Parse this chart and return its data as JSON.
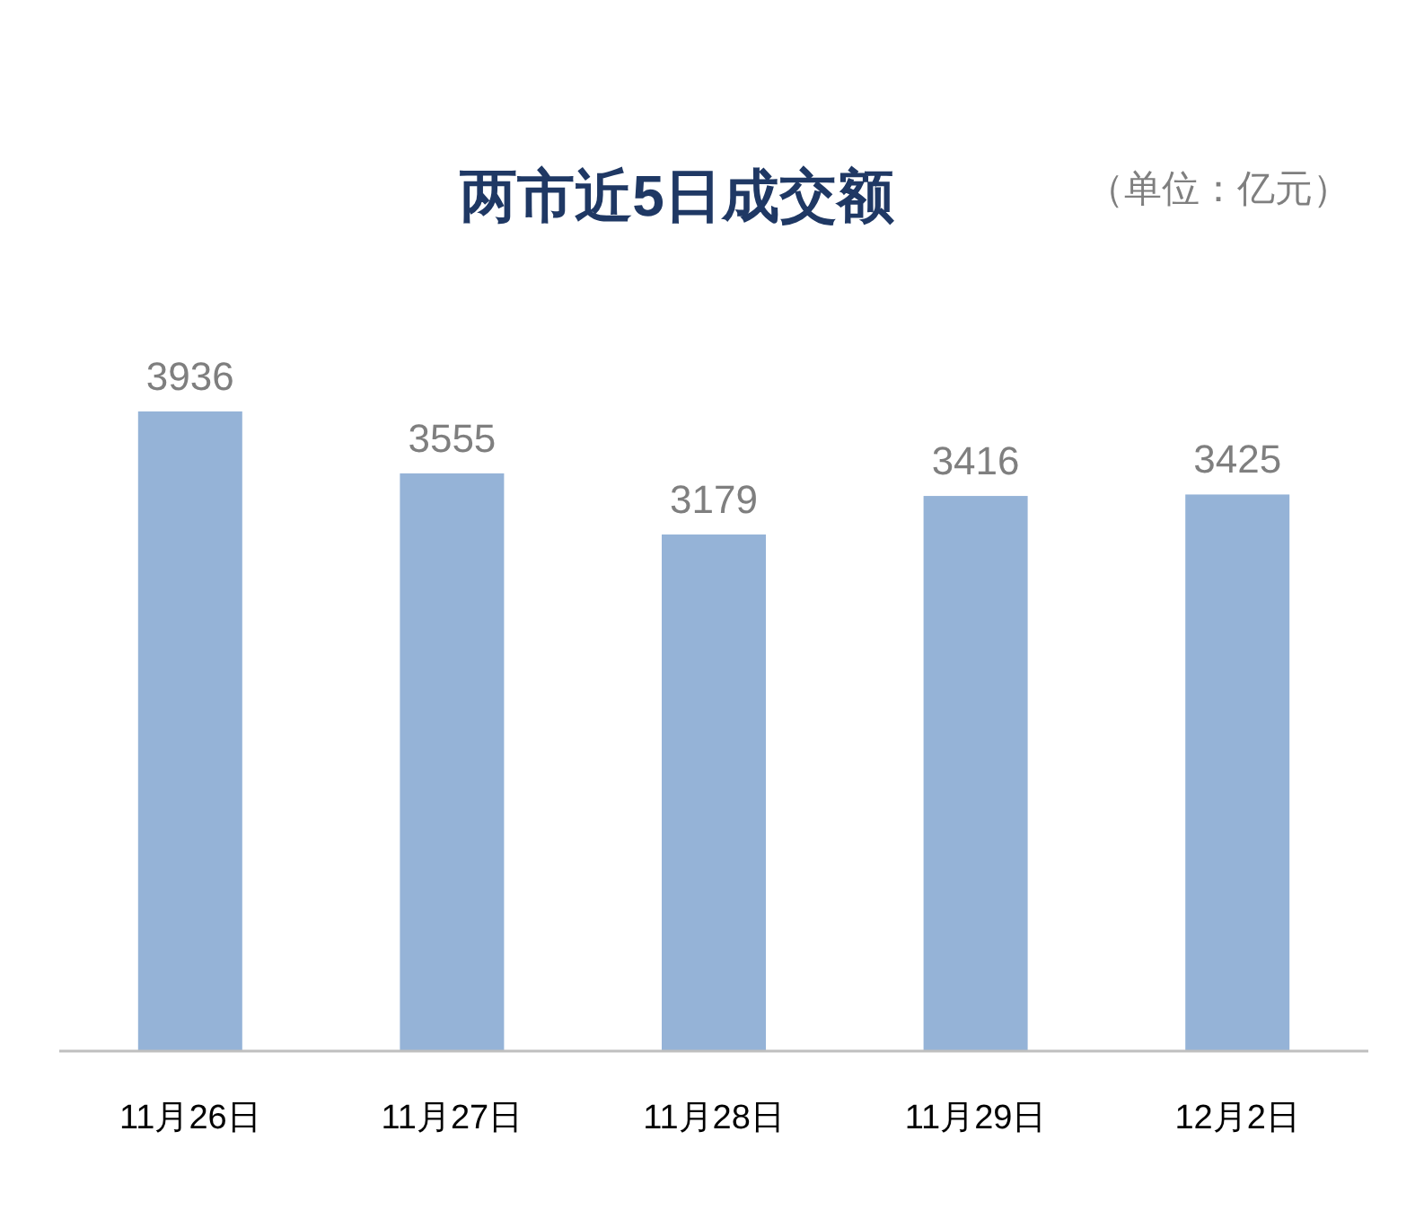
{
  "chart_data": {
    "type": "bar",
    "title": "两市近5日成交额",
    "annotations": [
      "（单位：亿元）"
    ],
    "categories": [
      "11月26日",
      "11月27日",
      "11月28日",
      "11月29日",
      "12月2日"
    ],
    "values": [
      3936,
      3555,
      3179,
      3416,
      3425
    ],
    "color": "#95b3d7",
    "data_labels": true
  }
}
